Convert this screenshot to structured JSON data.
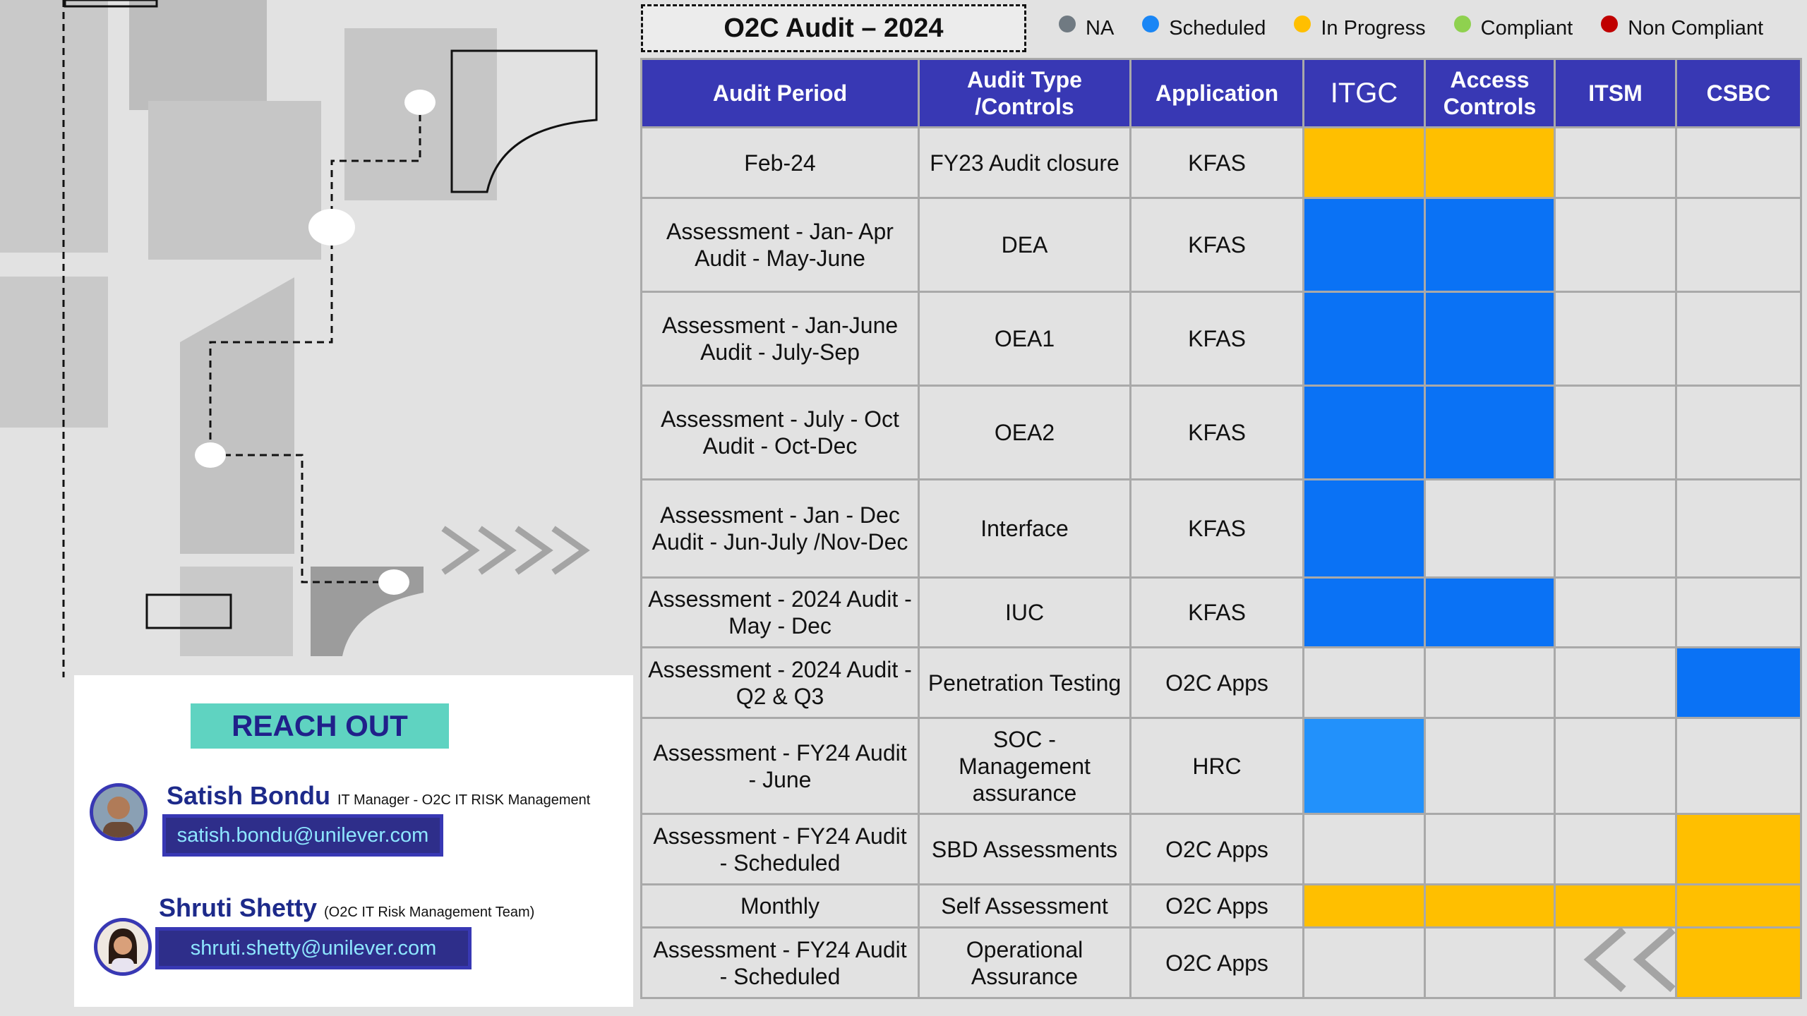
{
  "header": {
    "title": "O2C Audit – 2024"
  },
  "legend": [
    {
      "label": "NA",
      "color": "#707a82"
    },
    {
      "label": "Scheduled",
      "color": "#1a86f5"
    },
    {
      "label": "In Progress",
      "color": "#ffbf00"
    },
    {
      "label": "Compliant",
      "color": "#8fd14f"
    },
    {
      "label": "Non Compliant",
      "color": "#c00000"
    }
  ],
  "table": {
    "columns": [
      "Audit Period",
      "Audit Type /Controls",
      "Application",
      "ITGC",
      "Access Controls",
      "ITSM",
      "CSBC"
    ],
    "colors": {
      "in_progress": "#ffbf00",
      "scheduled": "#0a72f5",
      "scheduled_light": "#2291fb",
      "empty": "#e2e2e2"
    },
    "rows": [
      {
        "period": "Feb-24",
        "type": "FY23 Audit closure",
        "app": "KFAS",
        "status": [
          "in_progress",
          "in_progress",
          "",
          ""
        ]
      },
      {
        "period": "Assessment - Jan- Apr Audit - May-June",
        "type": "DEA",
        "app": "KFAS",
        "status": [
          "scheduled",
          "scheduled",
          "",
          ""
        ]
      },
      {
        "period": "Assessment - Jan-June Audit - July-Sep",
        "type": "OEA1",
        "app": "KFAS",
        "status": [
          "scheduled",
          "scheduled",
          "",
          ""
        ]
      },
      {
        "period": "Assessment - July - Oct Audit - Oct-Dec",
        "type": "OEA2",
        "app": "KFAS",
        "status": [
          "scheduled",
          "scheduled",
          "",
          ""
        ]
      },
      {
        "period": "Assessment - Jan - Dec Audit - Jun-July /Nov-Dec",
        "type": "Interface",
        "app": "KFAS",
        "status": [
          "scheduled",
          "",
          "",
          ""
        ]
      },
      {
        "period": "Assessment - 2024 Audit - May - Dec",
        "type": "IUC",
        "app": "KFAS",
        "status": [
          "scheduled",
          "scheduled",
          "",
          ""
        ]
      },
      {
        "period": "Assessment - 2024 Audit - Q2 & Q3",
        "type": "Penetration Testing",
        "app": "O2C Apps",
        "status": [
          "",
          "",
          "",
          "scheduled"
        ]
      },
      {
        "period": "Assessment - FY24 Audit - June",
        "type": "SOC - Management assurance",
        "app": "HRC",
        "status": [
          "scheduled_light",
          "",
          "",
          ""
        ]
      },
      {
        "period": "Assessment - FY24 Audit - Scheduled",
        "type": "SBD Assessments",
        "app": "O2C Apps",
        "status": [
          "",
          "",
          "",
          "in_progress"
        ]
      },
      {
        "period": "Monthly",
        "type": "Self Assessment",
        "app": "O2C Apps",
        "status": [
          "in_progress",
          "in_progress",
          "in_progress",
          "in_progress"
        ]
      },
      {
        "period": "Assessment - FY24 Audit - Scheduled",
        "type": "Operational Assurance",
        "app": "O2C Apps",
        "status": [
          "",
          "",
          "",
          "in_progress"
        ]
      }
    ]
  },
  "reach_out": {
    "title": "REACH OUT",
    "contacts": [
      {
        "name": "Satish Bondu",
        "role": "IT Manager - O2C IT RISK Management",
        "email": "satish.bondu@unilever.com"
      },
      {
        "name": "Shruti Shetty",
        "role": "(O2C IT Risk Management Team)",
        "email": "shruti.shetty@unilever.com"
      }
    ]
  }
}
